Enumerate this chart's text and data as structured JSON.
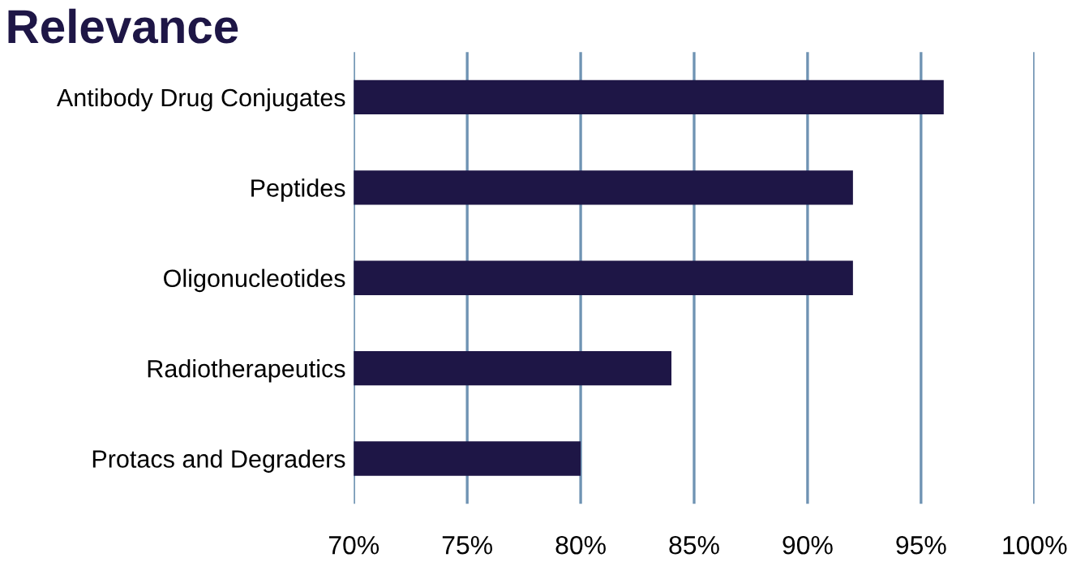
{
  "chart_data": {
    "type": "bar",
    "orientation": "horizontal",
    "title": "Relevance",
    "categories": [
      "Antibody Drug Conjugates",
      "Peptides",
      "Oligonucleotides",
      "Radiotherapeutics",
      "Protacs and Degraders"
    ],
    "values": [
      96,
      92,
      92,
      84,
      80
    ],
    "color": "#1e1646",
    "xlim": [
      70,
      100
    ],
    "xticks": [
      {
        "value": 70,
        "label": "70%"
      },
      {
        "value": 75,
        "label": "75%"
      },
      {
        "value": 80,
        "label": "80%"
      },
      {
        "value": 85,
        "label": "85%"
      },
      {
        "value": 90,
        "label": "90%"
      },
      {
        "value": 95,
        "label": "95%"
      },
      {
        "value": 100,
        "label": "100%"
      }
    ],
    "grid": "x"
  }
}
